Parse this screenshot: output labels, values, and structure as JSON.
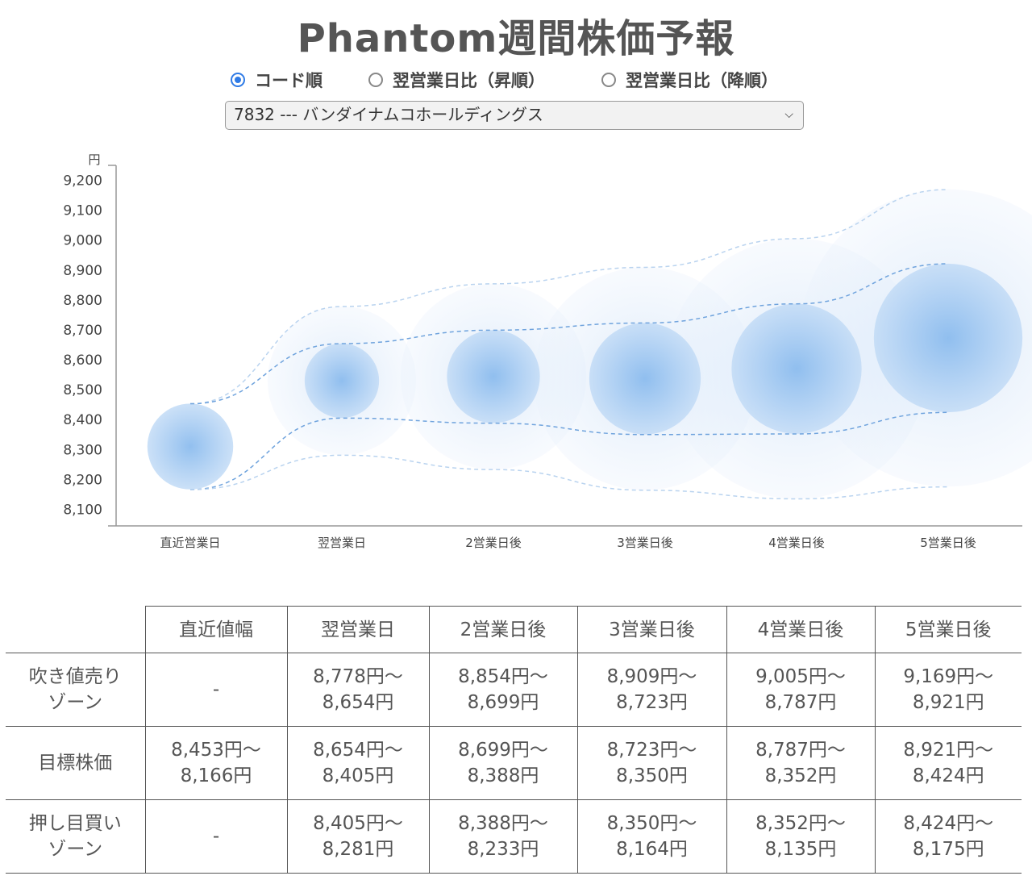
{
  "title": "Phantom週間株価予報",
  "sort_options": [
    {
      "label": "コード順",
      "selected": true
    },
    {
      "label": "翌営業日比（昇順）",
      "selected": false
    },
    {
      "label": "翌営業日比（降順）",
      "selected": false
    }
  ],
  "stock_select": {
    "value": "7832 --- バンダイナムコホールディングス"
  },
  "chart_data": {
    "type": "scatter",
    "ylabel": "円",
    "categories": [
      "直近営業日",
      "翌営業日",
      "2営業日後",
      "3営業日後",
      "4営業日後",
      "5営業日後"
    ],
    "yticks": [
      "8,100",
      "8,200",
      "8,300",
      "8,400",
      "8,500",
      "8,600",
      "8,700",
      "8,800",
      "8,900",
      "9,000",
      "9,100",
      "9,200"
    ],
    "ylim": [
      8050,
      9250
    ],
    "target_mid": [
      8310,
      8530,
      8544,
      8537,
      8570,
      8673
    ],
    "sell_zone_upper": [
      8453,
      8778,
      8854,
      8909,
      9005,
      9169
    ],
    "target_upper": [
      8453,
      8654,
      8699,
      8723,
      8787,
      8921
    ],
    "target_lower": [
      8166,
      8405,
      8388,
      8350,
      8352,
      8424
    ],
    "buy_zone_lower": [
      8166,
      8281,
      8233,
      8164,
      8135,
      8175
    ],
    "color": "#4a90e2"
  },
  "table": {
    "headers": [
      "",
      "直近値幅",
      "翌営業日",
      "2営業日後",
      "3営業日後",
      "4営業日後",
      "5営業日後"
    ],
    "rows": [
      {
        "label": [
          "吹き値売り",
          "ゾーン"
        ],
        "cells": [
          [
            "-"
          ],
          [
            "8,778円〜",
            "8,654円"
          ],
          [
            "8,854円〜",
            "8,699円"
          ],
          [
            "8,909円〜",
            "8,723円"
          ],
          [
            "9,005円〜",
            "8,787円"
          ],
          [
            "9,169円〜",
            "8,921円"
          ]
        ]
      },
      {
        "label": [
          "目標株価"
        ],
        "cells": [
          [
            "8,453円〜",
            "8,166円"
          ],
          [
            "8,654円〜",
            "8,405円"
          ],
          [
            "8,699円〜",
            "8,388円"
          ],
          [
            "8,723円〜",
            "8,350円"
          ],
          [
            "8,787円〜",
            "8,352円"
          ],
          [
            "8,921円〜",
            "8,424円"
          ]
        ]
      },
      {
        "label": [
          "押し目買い",
          "ゾーン"
        ],
        "cells": [
          [
            "-"
          ],
          [
            "8,405円〜",
            "8,281円"
          ],
          [
            "8,388円〜",
            "8,233円"
          ],
          [
            "8,350円〜",
            "8,164円"
          ],
          [
            "8,352円〜",
            "8,135円"
          ],
          [
            "8,424円〜",
            "8,175円"
          ]
        ]
      }
    ]
  }
}
